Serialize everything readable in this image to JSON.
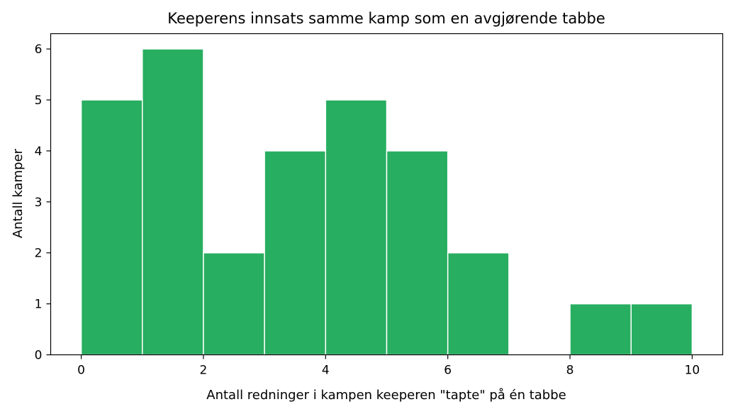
{
  "chart_data": {
    "type": "bar",
    "title": "Keeperens innsats samme kamp som en avgjørende tabbe",
    "xlabel": "Antall redninger i kampen keeperen \"tapte\" på én tabbe",
    "ylabel": "Antall kamper",
    "bin_edges": [
      0,
      1,
      2,
      3,
      4,
      5,
      6,
      7,
      8,
      9,
      10
    ],
    "values": [
      5,
      6,
      2,
      4,
      5,
      4,
      2,
      0,
      1,
      1
    ],
    "xlim": [
      -0.5,
      10.5
    ],
    "ylim": [
      0,
      6.3
    ],
    "xticks": [
      0,
      2,
      4,
      6,
      8,
      10
    ],
    "yticks": [
      0,
      1,
      2,
      3,
      4,
      5,
      6
    ],
    "grid": false,
    "bar_color": "#27ae60",
    "edge_color": "#ffffff"
  }
}
